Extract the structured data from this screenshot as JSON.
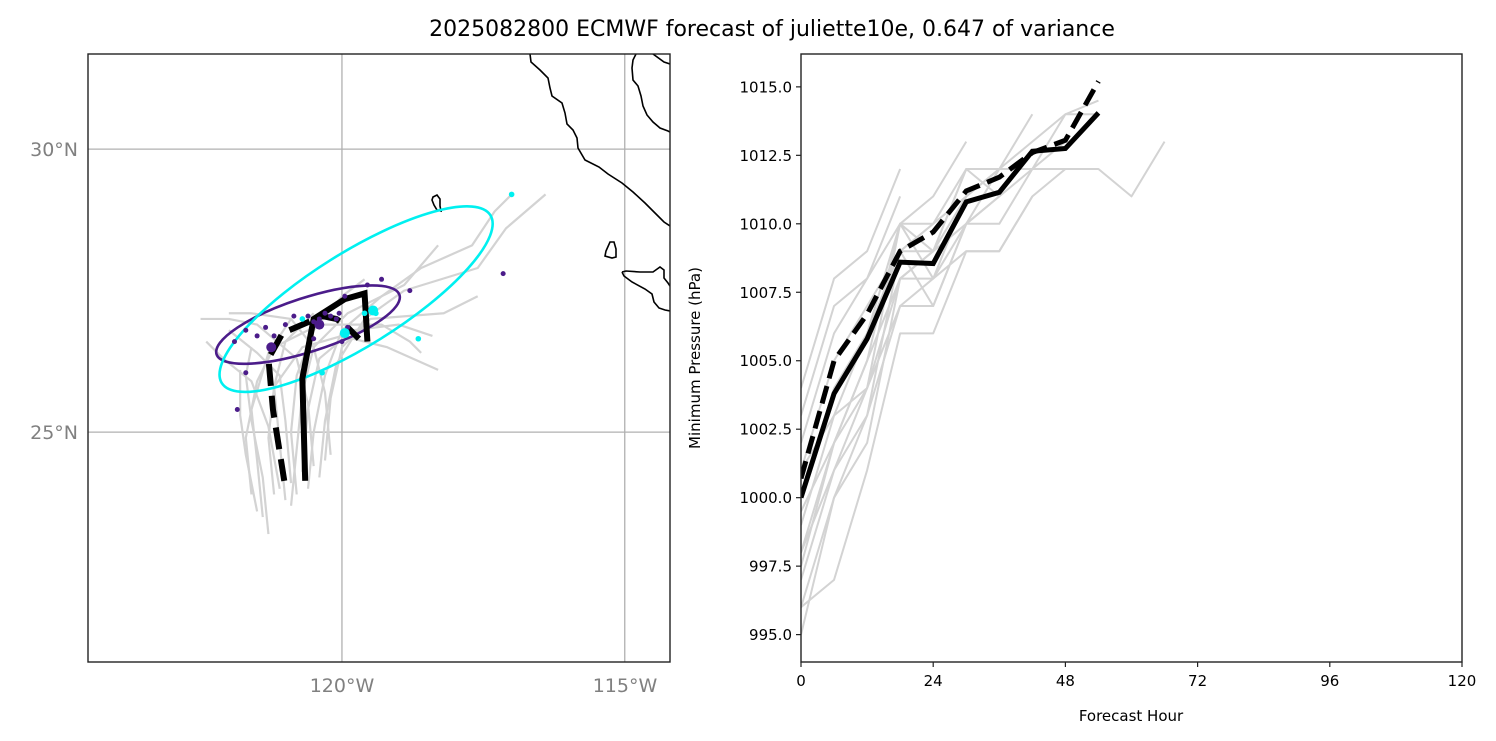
{
  "chart_data": [
    {
      "type": "map",
      "title": "2025082800 ECMWF forecast of juliette10e, 0.647 of variance",
      "lon_range": [
        -124.49,
        -114.2
      ],
      "lat_range": [
        20.94,
        31.68
      ],
      "grid": true,
      "gridlines_lon": [
        -120,
        -115
      ],
      "gridlines_lat": [
        25,
        30
      ],
      "xtick_labels": [
        "120°W",
        "115°W"
      ],
      "ytick_labels": [
        "25°N",
        "30°N"
      ],
      "colors": {
        "ensemble": "#d3d3d3",
        "mean_track": "#000000",
        "ellipse_purple": "#4b1c8a",
        "ellipse_cyan": "#00f0f0",
        "grid": "#b0b0b0",
        "coast": "#000000",
        "geotick_text": "#808080"
      },
      "series": [
        {
          "name": "solid-mean-track",
          "style": "solid",
          "points": [
            [
              -120.65,
              24.14
            ],
            [
              -120.7,
              25.95
            ],
            [
              -120.5,
              27.0
            ],
            [
              -119.95,
              27.35
            ],
            [
              -119.6,
              27.45
            ],
            [
              -119.55,
              26.6
            ]
          ]
        },
        {
          "name": "dashed-track",
          "style": "dashed",
          "points": [
            [
              -121.02,
              24.14
            ],
            [
              -121.22,
              25.4
            ],
            [
              -121.3,
              26.3
            ],
            [
              -121.05,
              26.75
            ],
            [
              -120.35,
              27.05
            ],
            [
              -120.1,
              27.0
            ],
            [
              -119.95,
              26.9
            ],
            [
              -119.7,
              26.65
            ]
          ]
        },
        {
          "name": "purple-ellipse",
          "style": "ellipse",
          "center": [
            -120.6,
            26.9
          ],
          "width_deg": 3.4,
          "height_deg": 0.95,
          "angle_deg": 18
        },
        {
          "name": "cyan-ellipse",
          "style": "ellipse",
          "center": [
            -119.75,
            27.35
          ],
          "width_deg": 5.6,
          "height_deg": 1.65,
          "angle_deg": 32
        }
      ],
      "purple_points": [
        [
          -121.9,
          26.6
        ],
        [
          -121.7,
          26.8
        ],
        [
          -121.5,
          26.7
        ],
        [
          -121.35,
          26.85
        ],
        [
          -121.2,
          26.7
        ],
        [
          -121.0,
          26.9
        ],
        [
          -120.85,
          27.05
        ],
        [
          -120.6,
          27.05
        ],
        [
          -120.5,
          26.95
        ],
        [
          -120.4,
          27.0
        ],
        [
          -120.3,
          27.1
        ],
        [
          -120.2,
          27.05
        ],
        [
          -120.1,
          27.0
        ],
        [
          -120.05,
          27.1
        ],
        [
          -119.9,
          26.85
        ],
        [
          -120.5,
          26.65
        ],
        [
          -120.0,
          26.6
        ],
        [
          -119.95,
          27.4
        ],
        [
          -119.55,
          27.6
        ],
        [
          -119.3,
          27.7
        ],
        [
          -118.8,
          27.5
        ],
        [
          -117.15,
          27.8
        ],
        [
          -121.85,
          25.4
        ],
        [
          -121.7,
          26.05
        ]
      ],
      "purple_large_points": [
        [
          -121.25,
          26.5
        ],
        [
          -120.4,
          26.9
        ]
      ],
      "cyan_points": [
        [
          -120.7,
          27.0
        ],
        [
          -119.6,
          27.1
        ],
        [
          -119.4,
          27.1
        ],
        [
          -118.65,
          26.65
        ],
        [
          -120.35,
          26.05
        ],
        [
          -117.0,
          29.2
        ]
      ],
      "cyan_large_points": [
        [
          -119.95,
          26.75
        ],
        [
          -119.45,
          27.15
        ]
      ],
      "ensemble_tracks": [
        [
          [
            -121.3,
            23.2
          ],
          [
            -121.4,
            24.2
          ],
          [
            -121.6,
            25.2
          ],
          [
            -121.7,
            26.0
          ],
          [
            -121.6,
            26.5
          ]
        ],
        [
          [
            -121.4,
            23.5
          ],
          [
            -121.5,
            24.5
          ],
          [
            -121.6,
            25.4
          ],
          [
            -121.3,
            26.4
          ],
          [
            -120.9,
            27.0
          ]
        ],
        [
          [
            -121.5,
            23.6
          ],
          [
            -121.7,
            24.6
          ],
          [
            -121.8,
            25.3
          ],
          [
            -121.8,
            26.1
          ]
        ],
        [
          [
            -121.0,
            23.8
          ],
          [
            -121.1,
            24.8
          ],
          [
            -121.2,
            25.8
          ],
          [
            -121.0,
            26.6
          ],
          [
            -120.5,
            27.1
          ]
        ],
        [
          [
            -120.8,
            23.9
          ],
          [
            -120.9,
            25.0
          ],
          [
            -120.8,
            26.0
          ],
          [
            -120.5,
            26.8
          ],
          [
            -120.0,
            27.4
          ],
          [
            -119.6,
            27.7
          ]
        ],
        [
          [
            -120.6,
            24.0
          ],
          [
            -120.5,
            25.0
          ],
          [
            -120.3,
            26.0
          ],
          [
            -120.0,
            26.8
          ],
          [
            -119.3,
            27.4
          ],
          [
            -118.6,
            27.9
          ],
          [
            -117.7,
            28.3
          ],
          [
            -117.3,
            28.9
          ],
          [
            -117.0,
            29.2
          ]
        ],
        [
          [
            -120.4,
            24.2
          ],
          [
            -120.3,
            25.2
          ],
          [
            -120.1,
            26.2
          ],
          [
            -119.6,
            27.0
          ],
          [
            -118.9,
            27.5
          ],
          [
            -117.6,
            27.9
          ],
          [
            -117.1,
            28.6
          ],
          [
            -116.4,
            29.2
          ]
        ],
        [
          [
            -120.9,
            24.1
          ],
          [
            -121.0,
            25.2
          ],
          [
            -121.1,
            26.0
          ],
          [
            -121.5,
            26.4
          ],
          [
            -122.0,
            26.8
          ]
        ],
        [
          [
            -121.2,
            23.9
          ],
          [
            -121.3,
            24.9
          ],
          [
            -121.2,
            25.8
          ],
          [
            -120.7,
            26.5
          ],
          [
            -120.0,
            26.7
          ],
          [
            -119.2,
            26.5
          ],
          [
            -118.3,
            26.1
          ]
        ],
        [
          [
            -120.7,
            24.3
          ],
          [
            -120.6,
            25.4
          ],
          [
            -120.4,
            26.3
          ],
          [
            -119.8,
            26.8
          ],
          [
            -119.0,
            26.9
          ],
          [
            -118.4,
            26.7
          ]
        ],
        [
          [
            -120.5,
            24.4
          ],
          [
            -120.6,
            25.5
          ],
          [
            -120.8,
            26.3
          ],
          [
            -121.5,
            26.9
          ],
          [
            -122.0,
            27.0
          ],
          [
            -122.5,
            27.0
          ]
        ],
        [
          [
            -121.1,
            24.0
          ],
          [
            -121.3,
            25.1
          ],
          [
            -121.6,
            25.9
          ],
          [
            -122.1,
            26.3
          ],
          [
            -122.4,
            26.6
          ]
        ],
        [
          [
            -120.3,
            24.5
          ],
          [
            -120.2,
            25.6
          ],
          [
            -120.0,
            26.5
          ],
          [
            -119.5,
            27.0
          ],
          [
            -118.2,
            27.1
          ],
          [
            -117.6,
            27.4
          ]
        ],
        [
          [
            -120.9,
            23.7
          ],
          [
            -120.8,
            24.7
          ],
          [
            -120.7,
            25.7
          ],
          [
            -120.5,
            26.5
          ],
          [
            -119.9,
            27.1
          ],
          [
            -118.9,
            27.6
          ],
          [
            -118.3,
            28.3
          ]
        ],
        [
          [
            -121.6,
            23.9
          ],
          [
            -121.7,
            24.9
          ],
          [
            -121.5,
            25.9
          ],
          [
            -121.2,
            26.5
          ],
          [
            -120.4,
            26.9
          ],
          [
            -119.3,
            26.9
          ],
          [
            -118.8,
            26.6
          ],
          [
            -118.6,
            26.4
          ]
        ],
        [
          [
            -120.2,
            24.6
          ],
          [
            -120.3,
            25.7
          ],
          [
            -120.5,
            26.5
          ],
          [
            -120.9,
            27.0
          ],
          [
            -121.6,
            27.1
          ],
          [
            -122.0,
            27.1
          ]
        ]
      ]
    },
    {
      "type": "line",
      "xlabel": "Forecast Hour",
      "ylabel": "Minimum Pressure (hPa)",
      "xlim": [
        0,
        120
      ],
      "ylim": [
        994.0,
        1016.2
      ],
      "xticks": [
        0,
        24,
        48,
        72,
        96,
        120
      ],
      "yticks": [
        995.0,
        997.5,
        1000.0,
        1002.5,
        1005.0,
        1007.5,
        1010.0,
        1012.5,
        1015.0
      ],
      "xtick_labels": [
        "0",
        "24",
        "48",
        "72",
        "96",
        "120"
      ],
      "ytick_labels": [
        "995.0",
        "997.5",
        "1000.0",
        "1002.5",
        "1005.0",
        "1007.5",
        "1010.0",
        "1012.5",
        "1015.0"
      ],
      "grid": false,
      "series": [
        {
          "name": "solid-mean",
          "style": "solid",
          "x": [
            0,
            6,
            12,
            18,
            24,
            30,
            36,
            42,
            48,
            54
          ],
          "y": [
            1000.0,
            1003.8,
            1005.8,
            1008.6,
            1008.55,
            1010.8,
            1011.15,
            1012.65,
            1012.75,
            1014.05
          ]
        },
        {
          "name": "dashed-mean",
          "style": "dashed",
          "x": [
            0,
            6,
            12,
            18,
            24,
            30,
            36,
            42,
            48,
            54
          ],
          "y": [
            1000.7,
            1005.0,
            1006.7,
            1009.0,
            1009.7,
            1011.2,
            1011.7,
            1012.6,
            1013.05,
            1015.2
          ]
        }
      ],
      "ensemble": [
        {
          "x": [
            0,
            6,
            12,
            18,
            24,
            30,
            36,
            42,
            48,
            54,
            60,
            66
          ],
          "y": [
            996.0,
            997.0,
            1001.0,
            1006.0,
            1006.0,
            1009.0,
            1009.0,
            1011.0,
            1012.0,
            1012.0,
            1011.0,
            1013.0
          ]
        },
        {
          "x": [
            0,
            6,
            12,
            18,
            24,
            30,
            36,
            42,
            48,
            54
          ],
          "y": [
            1004.0,
            1008.0,
            1009.0,
            1012.0,
            null,
            null,
            null,
            null,
            null,
            null
          ]
        },
        {
          "x": [
            0,
            6,
            12,
            18,
            24,
            30,
            36,
            42,
            48,
            54
          ],
          "y": [
            1003.0,
            1007.0,
            1008.0,
            1011.0,
            null,
            null,
            null,
            null,
            null,
            null
          ]
        },
        {
          "x": [
            0,
            6,
            12,
            18,
            24,
            30,
            36,
            42,
            48,
            54
          ],
          "y": [
            1002.0,
            1006.0,
            1008.0,
            1010.0,
            1011.0,
            1013.0,
            null,
            null,
            null,
            null
          ]
        },
        {
          "x": [
            0,
            6,
            12,
            18,
            24,
            30,
            36,
            42,
            48,
            54
          ],
          "y": [
            1001.0,
            1005.0,
            1007.0,
            1009.0,
            1010.0,
            1012.0,
            1012.0,
            1014.0,
            null,
            null
          ]
        },
        {
          "x": [
            0,
            6,
            12,
            18,
            24,
            30,
            36,
            42,
            48,
            54
          ],
          "y": [
            1000.0,
            1004.0,
            1006.0,
            1010.0,
            1010.0,
            1011.0,
            1012.0,
            1013.0,
            1014.0,
            1014.5
          ]
        },
        {
          "x": [
            0,
            6,
            12,
            18,
            24,
            30,
            36,
            42,
            48,
            54
          ],
          "y": [
            999.0,
            1003.0,
            1006.0,
            1009.0,
            1009.0,
            1012.0,
            1012.0,
            1012.0,
            1014.0,
            1014.0
          ]
        },
        {
          "x": [
            0,
            6,
            12,
            18,
            24,
            30,
            36,
            42,
            48,
            54
          ],
          "y": [
            998.0,
            1002.0,
            1005.0,
            1008.0,
            1008.0,
            1010.0,
            1010.0,
            1012.0,
            1013.0,
            null
          ]
        },
        {
          "x": [
            0,
            6,
            12,
            18,
            24,
            30,
            36,
            42,
            48,
            54
          ],
          "y": [
            997.0,
            1001.0,
            1004.0,
            1007.0,
            1007.0,
            1010.0,
            1011.0,
            1012.0,
            1012.0,
            null
          ]
        },
        {
          "x": [
            0,
            6,
            12,
            18,
            24,
            30,
            36,
            42,
            48,
            54
          ],
          "y": [
            996.0,
            1000.0,
            1003.0,
            1007.0,
            1008.0,
            1009.0,
            1009.0,
            1011.0,
            null,
            null
          ]
        },
        {
          "x": [
            0,
            6,
            12,
            18,
            24,
            30,
            36,
            42,
            48,
            54
          ],
          "y": [
            995.0,
            1000.0,
            1002.0,
            1008.0,
            1009.0,
            1011.0,
            1012.0,
            null,
            null,
            null
          ]
        },
        {
          "x": [
            0,
            6,
            12,
            18,
            24,
            30,
            36,
            42,
            48,
            54
          ],
          "y": [
            1001.0,
            1003.0,
            1004.0,
            1008.0,
            1009.0,
            1010.0,
            1012.0,
            null,
            null,
            null
          ]
        },
        {
          "x": [
            0,
            6,
            12,
            18,
            24,
            30,
            36,
            42,
            48,
            54
          ],
          "y": [
            999.5,
            1002.0,
            1005.0,
            1010.0,
            1009.0,
            1012.0,
            1011.0,
            null,
            null,
            null
          ]
        },
        {
          "x": [
            0,
            6,
            12,
            18,
            24,
            30,
            36,
            42,
            48,
            54
          ],
          "y": [
            998.0,
            1001.0,
            1003.0,
            1009.0,
            1007.0,
            1010.0,
            1011.0,
            null,
            null,
            null
          ]
        },
        {
          "x": [
            0,
            6,
            12,
            18,
            24,
            30,
            36,
            42,
            48,
            54
          ],
          "y": [
            997.5,
            1002.0,
            1004.0,
            1010.0,
            1008.0,
            1011.0,
            1012.0,
            null,
            null,
            null
          ]
        }
      ],
      "colors": {
        "ensemble": "#d3d3d3",
        "mean": "#000000"
      }
    }
  ]
}
